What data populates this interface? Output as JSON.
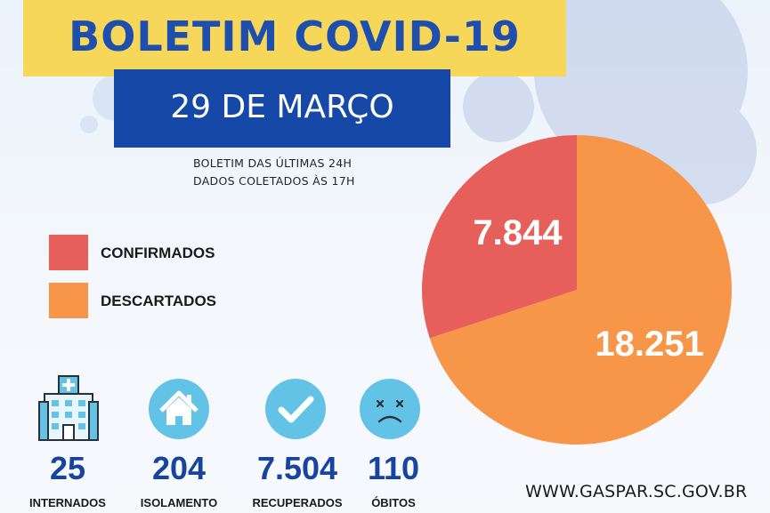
{
  "header": {
    "title": "BOLETIM COVID-19",
    "date": "29 DE MARÇO",
    "subtitle_line1": "BOLETIM DAS ÚLTIMAS 24H",
    "subtitle_line2": "DADOS COLETADOS ÀS  17H"
  },
  "colors": {
    "title_bar": "#f6d75a",
    "date_bar": "#1648a8",
    "confirmados": "#e65f5a",
    "descartados": "#f79548",
    "stat_blue": "#17449e",
    "icon_circle": "#63c3e6"
  },
  "chart_data": {
    "type": "pie",
    "categories": [
      "CONFIRMADOS",
      "DESCARTADOS"
    ],
    "values": [
      7844,
      18251
    ],
    "value_labels": [
      "7.844",
      "18.251"
    ],
    "colors": [
      "#e65f5a",
      "#f79548"
    ],
    "legend_position": "left"
  },
  "stats": [
    {
      "icon": "hospital-icon",
      "value": "25",
      "label": "INTERNADOS"
    },
    {
      "icon": "house-icon",
      "value": "204",
      "label": "ISOLAMENTO"
    },
    {
      "icon": "check-icon",
      "value": "7.504",
      "label": "RECUPERADOS"
    },
    {
      "icon": "sad-face-icon",
      "value": "110",
      "label": "ÓBITOS"
    }
  ],
  "footer": {
    "website": "WWW.GASPAR.SC.GOV.BR"
  }
}
